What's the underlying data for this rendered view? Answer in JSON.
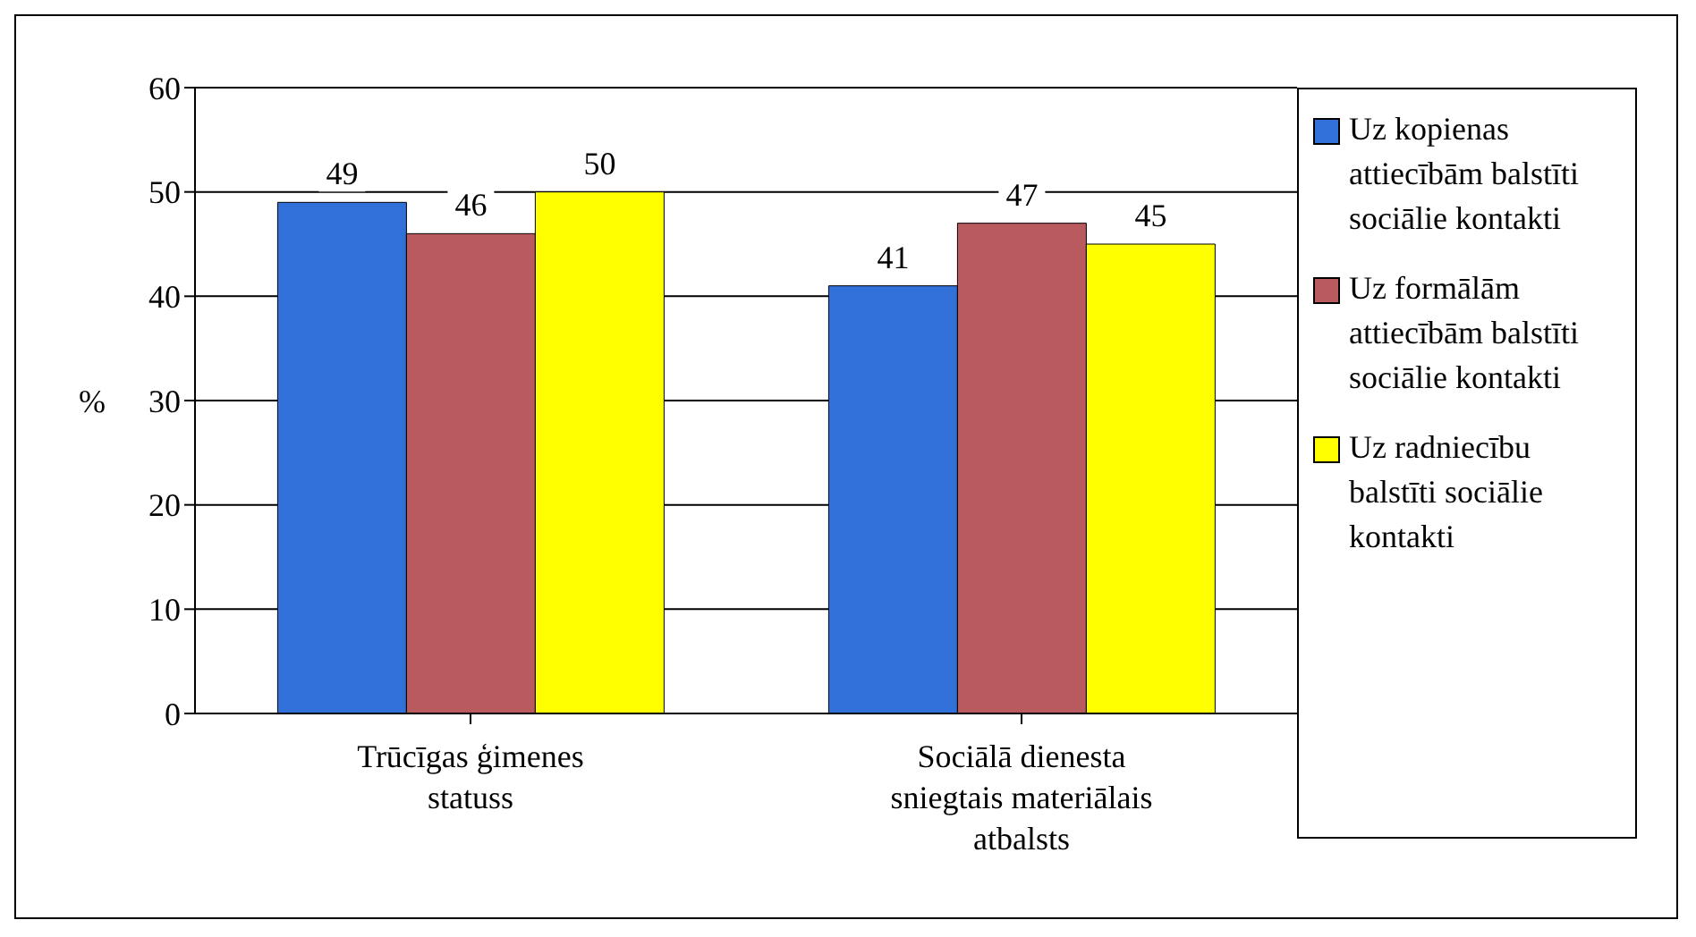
{
  "chart_data": {
    "type": "bar",
    "ylabel": "%",
    "categories": [
      "Trūcīgas ģimenes statuss",
      "Sociālā dienesta sniegtais materiālais atbalsts"
    ],
    "series": [
      {
        "name": "Uz kopienas attiecībām balstīti sociālie kontakti",
        "color": "#3070d8",
        "values": [
          49,
          41
        ]
      },
      {
        "name": "Uz formālām attiecībām balstīti sociālie kontakti",
        "color": "#b85a5e",
        "values": [
          46,
          47
        ]
      },
      {
        "name": "Uz radniecību balstīti sociālie kontakti",
        "color": "#ffff00",
        "values": [
          50,
          45
        ]
      }
    ],
    "ylim": [
      0,
      60
    ],
    "yticks": [
      0,
      10,
      20,
      30,
      40,
      50,
      60
    ],
    "grid": "y",
    "legend": "right",
    "data_labels": true
  }
}
